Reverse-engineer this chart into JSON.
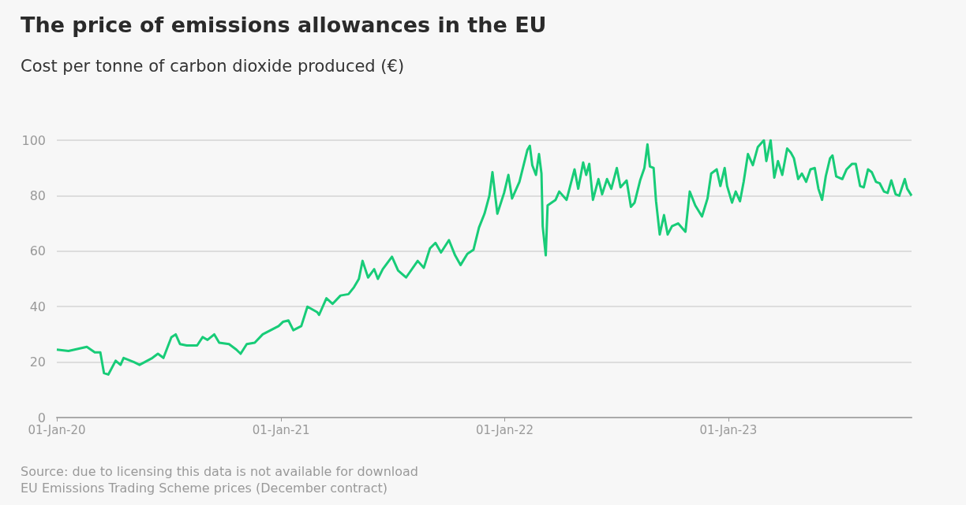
{
  "chart_data": {
    "type": "line",
    "title": "The price of emissions allowances in the EU",
    "subtitle": "Cost per tonne of carbon dioxide produced (€)",
    "annotations": [
      "Source: due to licensing this data is not available for download",
      "EU Emissions Trading Scheme prices (December contract)"
    ],
    "x": [
      "2020-01-01",
      "2020-01-20",
      "2020-02-19",
      "2020-03-03",
      "2020-03-12",
      "2020-03-18",
      "2020-03-25",
      "2020-04-06",
      "2020-04-14",
      "2020-04-19",
      "2020-05-06",
      "2020-05-15",
      "2020-06-05",
      "2020-06-14",
      "2020-06-23",
      "2020-07-06",
      "2020-07-13",
      "2020-07-20",
      "2020-07-31",
      "2020-08-17",
      "2020-08-26",
      "2020-09-03",
      "2020-09-14",
      "2020-09-22",
      "2020-10-08",
      "2020-10-20",
      "2020-10-27",
      "2020-11-06",
      "2020-11-19",
      "2020-12-02",
      "2020-12-15",
      "2020-12-28",
      "2021-01-04",
      "2021-01-13",
      "2021-01-21",
      "2021-02-03",
      "2021-02-13",
      "2021-03-01",
      "2021-03-04",
      "2021-03-16",
      "2021-03-26",
      "2021-04-08",
      "2021-04-21",
      "2021-04-30",
      "2021-05-08",
      "2021-05-14",
      "2021-05-23",
      "2021-06-02",
      "2021-06-08",
      "2021-06-16",
      "2021-07-01",
      "2021-07-11",
      "2021-07-24",
      "2021-08-12",
      "2021-08-22",
      "2021-09-01",
      "2021-09-10",
      "2021-09-19",
      "2021-10-02",
      "2021-10-12",
      "2021-10-21",
      "2021-11-01",
      "2021-11-11",
      "2021-11-20",
      "2021-11-29",
      "2021-12-07",
      "2021-12-12",
      "2021-12-20",
      "2021-12-31",
      "2022-01-07",
      "2022-01-13",
      "2022-01-25",
      "2022-02-07",
      "2022-02-11",
      "2022-02-15",
      "2022-02-21",
      "2022-02-26",
      "2022-03-02",
      "2022-03-04",
      "2022-03-09",
      "2022-03-12",
      "2022-03-25",
      "2022-03-31",
      "2022-04-12",
      "2022-04-25",
      "2022-05-01",
      "2022-05-09",
      "2022-05-14",
      "2022-05-19",
      "2022-05-25",
      "2022-06-03",
      "2022-06-09",
      "2022-06-17",
      "2022-06-24",
      "2022-07-03",
      "2022-07-09",
      "2022-07-19",
      "2022-07-26",
      "2022-08-01",
      "2022-08-10",
      "2022-08-17",
      "2022-08-22",
      "2022-08-26",
      "2022-09-01",
      "2022-09-05",
      "2022-09-11",
      "2022-09-18",
      "2022-09-24",
      "2022-10-01",
      "2022-10-11",
      "2022-10-23",
      "2022-10-30",
      "2022-11-08",
      "2022-11-19",
      "2022-11-28",
      "2022-12-04",
      "2022-12-13",
      "2022-12-19",
      "2022-12-26",
      "2022-12-30",
      "2023-01-07",
      "2023-01-13",
      "2023-01-20",
      "2023-01-26",
      "2023-02-02",
      "2023-02-10",
      "2023-02-18",
      "2023-02-28",
      "2023-03-04",
      "2023-03-11",
      "2023-03-17",
      "2023-03-23",
      "2023-03-30",
      "2023-04-07",
      "2023-04-13",
      "2023-04-18",
      "2023-04-25",
      "2023-05-01",
      "2023-05-08",
      "2023-05-15",
      "2023-05-22",
      "2023-05-28",
      "2023-06-03",
      "2023-06-09",
      "2023-06-16",
      "2023-06-20",
      "2023-06-26",
      "2023-07-06",
      "2023-07-13",
      "2023-07-22",
      "2023-07-28",
      "2023-08-04",
      "2023-08-10",
      "2023-08-17",
      "2023-08-23",
      "2023-08-30",
      "2023-09-05",
      "2023-09-12",
      "2023-09-18",
      "2023-09-24",
      "2023-10-01",
      "2023-10-07",
      "2023-10-16",
      "2023-10-20",
      "2023-10-27"
    ],
    "series": [
      {
        "color": "#18cc78",
        "values": [
          24.5,
          24,
          25.5,
          23.5,
          23.5,
          16,
          15.5,
          20.5,
          19,
          21.5,
          20,
          19,
          21.5,
          23,
          21.5,
          29,
          30,
          26.5,
          26,
          26,
          29,
          28,
          30,
          27,
          26.5,
          24.5,
          23,
          26.5,
          27,
          30,
          31.5,
          33,
          34.5,
          35,
          31.5,
          33,
          40,
          38,
          37,
          43,
          41,
          44,
          44.5,
          47,
          50,
          56.5,
          50.5,
          53.5,
          50,
          53.5,
          58,
          53,
          50.5,
          56.5,
          54,
          61,
          63,
          59.5,
          64,
          58.5,
          55,
          59,
          60.5,
          68.5,
          73.5,
          80,
          88.5,
          73.5,
          81,
          87.5,
          79,
          85,
          96.5,
          98,
          91,
          87.5,
          95,
          88,
          69,
          58.5,
          76.5,
          78.5,
          81.5,
          78.5,
          89.5,
          82.5,
          92,
          87.5,
          91.5,
          78.5,
          86,
          80.5,
          86,
          82.5,
          90,
          83,
          85.5,
          76,
          77.5,
          85.5,
          90,
          98.5,
          90.5,
          90,
          78,
          66,
          73,
          66,
          69,
          70,
          67,
          81.5,
          76.5,
          72.5,
          79,
          88,
          89.5,
          83.5,
          90,
          83.5,
          77.5,
          81.5,
          78,
          85,
          95,
          91,
          97.5,
          100,
          92.5,
          100,
          86.5,
          92.5,
          87.5,
          97,
          95.5,
          93.5,
          86,
          88,
          85,
          89.5,
          90,
          82.5,
          78.5,
          87,
          93.5,
          94.5,
          87,
          86,
          89.5,
          91.5,
          91.5,
          83.5,
          83,
          89.5,
          88.5,
          85,
          84.5,
          81.5,
          81,
          85.5,
          80.5,
          80,
          86,
          82.5,
          80
        ]
      }
    ],
    "xlim": [
      "2020-01-01",
      "2023-10-27"
    ],
    "xticks": [
      {
        "value": "2020-01-01",
        "label": "01-Jan-20"
      },
      {
        "value": "2021-01-01",
        "label": "01-Jan-21"
      },
      {
        "value": "2022-01-01",
        "label": "01-Jan-22"
      },
      {
        "value": "2023-01-01",
        "label": "01-Jan-23"
      }
    ],
    "ylim": [
      0,
      100
    ],
    "yticks": [
      0,
      20,
      40,
      60,
      80,
      100
    ],
    "grid": "y",
    "marker": "none",
    "line_style": "solid"
  }
}
